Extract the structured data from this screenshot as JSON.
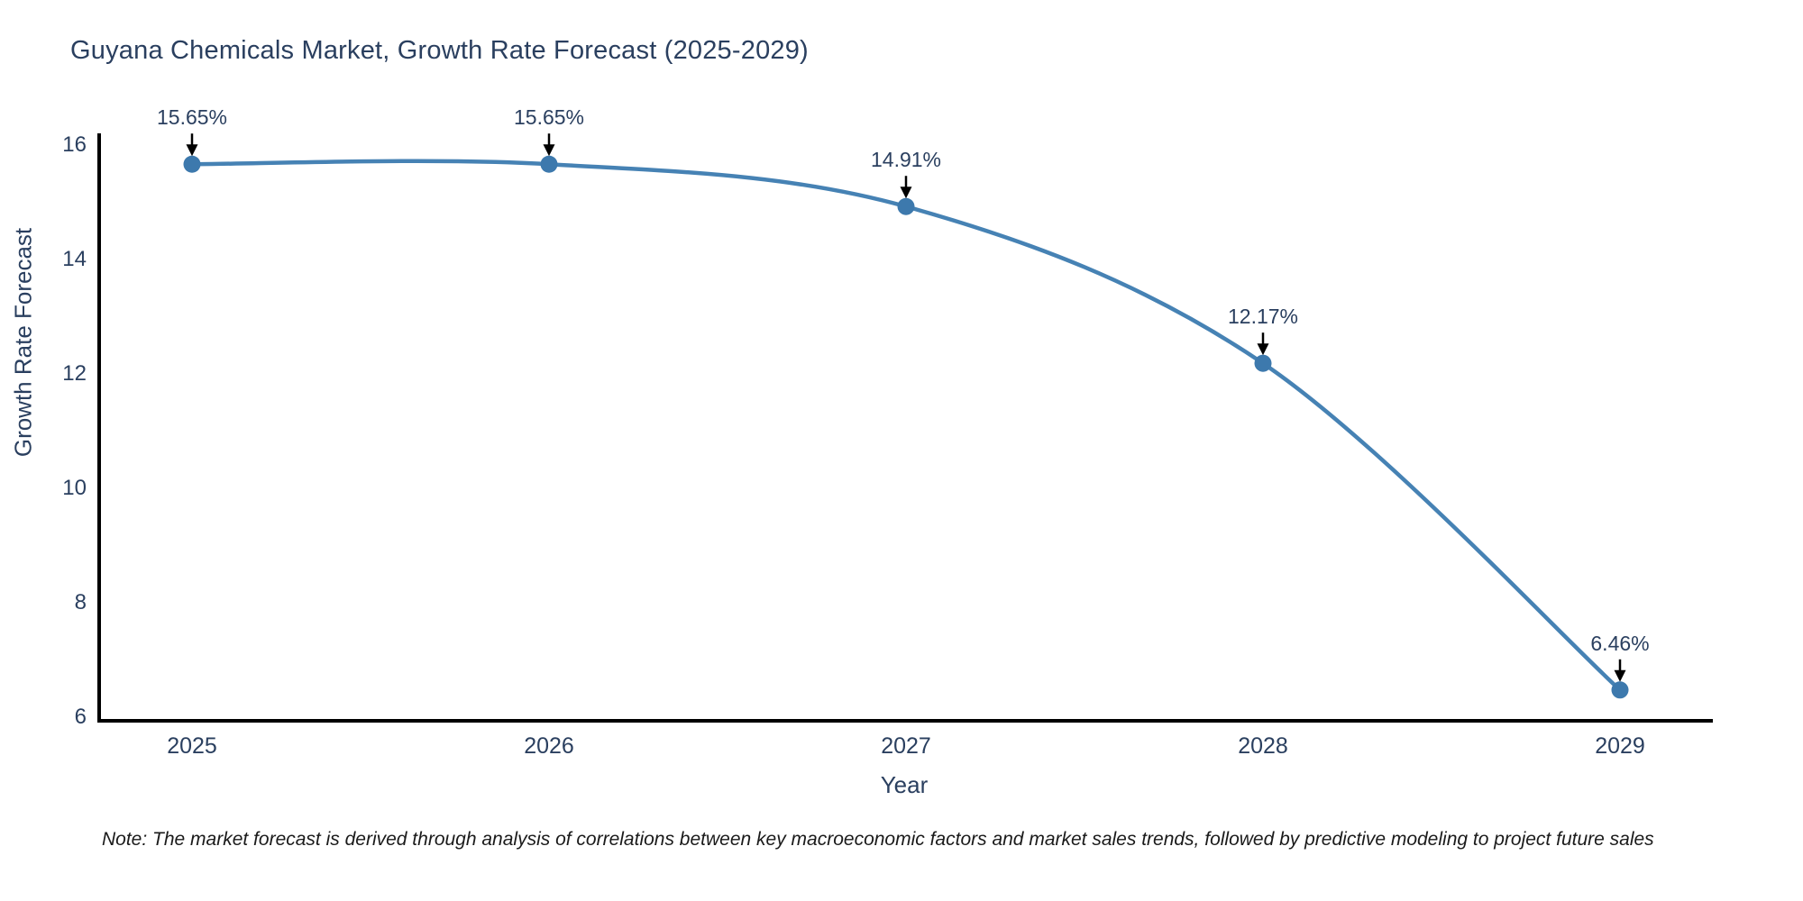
{
  "chart_data": {
    "type": "line",
    "title": "Guyana Chemicals Market, Growth Rate Forecast (2025-2029)",
    "xlabel": "Year",
    "ylabel": "Growth Rate Forecast",
    "categories": [
      "2025",
      "2026",
      "2027",
      "2028",
      "2029"
    ],
    "series": [
      {
        "name": "Growth Rate Forecast",
        "values": [
          15.65,
          15.65,
          14.91,
          12.17,
          6.46
        ]
      }
    ],
    "point_labels": [
      "15.65%",
      "15.65%",
      "14.91%",
      "12.17%",
      "6.46%"
    ],
    "ylim": [
      6,
      16
    ],
    "yticks": [
      6,
      8,
      10,
      12,
      14,
      16
    ],
    "grid": false,
    "legend_position": "none",
    "line_color": "#4682b4",
    "marker_color": "#3d79ad",
    "axis_color": "#000000",
    "arrow_color": "#000000",
    "text_color": "#2a3f5f",
    "note": "Note: The market forecast is derived through analysis of correlations between key macroeconomic factors and market sales trends, followed by predictive modeling to project future sales"
  }
}
